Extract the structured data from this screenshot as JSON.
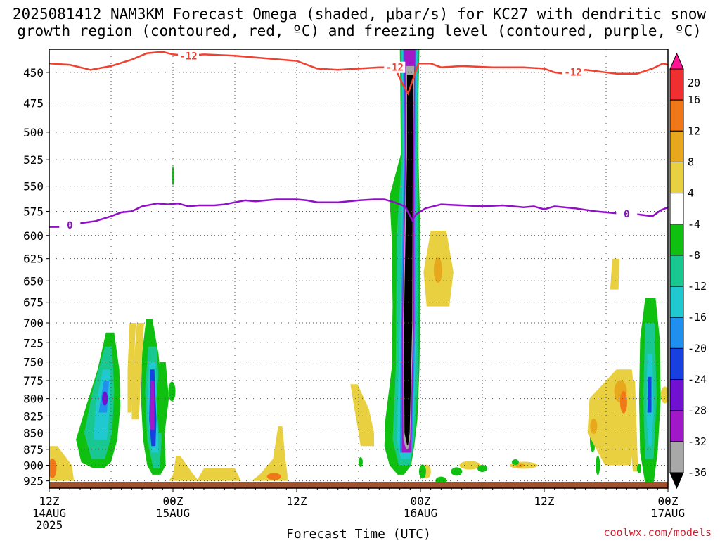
{
  "chart_data": {
    "type": "heatmap",
    "title_lines": [
      "2025081412 NAM3KM Forecast Omega (shaded, μbar/s) for KC27 with dendritic snow",
      "growth region (contoured, red, ºC) and freezing level (contoured, purple, ºC)"
    ],
    "xlabel": "Forecast Time (UTC)",
    "ylabel": "",
    "credit": "coolwx.com/models",
    "x_ticks": [
      {
        "hour": 0,
        "label": [
          "12Z",
          "14AUG",
          "2025"
        ]
      },
      {
        "hour": 12,
        "label": [
          "00Z",
          "15AUG"
        ]
      },
      {
        "hour": 24,
        "label": [
          "12Z"
        ]
      },
      {
        "hour": 36,
        "label": [
          "00Z",
          "16AUG"
        ]
      },
      {
        "hour": 48,
        "label": [
          "12Z"
        ]
      },
      {
        "hour": 60,
        "label": [
          "00Z",
          "17AUG"
        ]
      }
    ],
    "xlim": [
      0,
      60
    ],
    "y_ticks": [
      450,
      475,
      500,
      525,
      550,
      575,
      600,
      625,
      650,
      675,
      700,
      725,
      750,
      775,
      800,
      825,
      850,
      875,
      900,
      925
    ],
    "ylim": [
      432,
      937
    ],
    "y_scale": "log-pressure (inverted, hPa)",
    "grid": true,
    "colorbar": {
      "ticks": [
        20,
        16,
        12,
        8,
        4,
        -4,
        -8,
        -12,
        -16,
        -20,
        -24,
        -28,
        -32,
        -36
      ],
      "colors": [
        "#ff1493",
        "#f03030",
        "#f07818",
        "#e8a81e",
        "#e8d040",
        "#ffffff",
        "#10c010",
        "#18c890",
        "#20c8d0",
        "#2090f0",
        "#1840e0",
        "#7010d0",
        "#a018c8",
        "#a8a8a8",
        "#000000"
      ]
    },
    "contours": [
      {
        "label": "-12",
        "color": "#f04030",
        "points": [
          [
            0,
            443
          ],
          [
            2,
            444
          ],
          [
            4,
            448
          ],
          [
            6,
            445
          ],
          [
            8,
            440
          ],
          [
            9.5,
            435
          ],
          [
            11,
            434
          ],
          [
            12,
            436
          ],
          [
            13.5,
            437
          ],
          [
            15,
            436
          ],
          [
            18,
            437
          ],
          [
            21,
            439
          ],
          [
            24,
            441
          ],
          [
            26,
            447
          ],
          [
            28,
            448
          ],
          [
            30,
            447
          ],
          [
            32,
            446
          ],
          [
            33.5,
            446
          ],
          [
            34.3,
            460
          ],
          [
            34.8,
            467
          ],
          [
            35.3,
            455
          ],
          [
            35.8,
            443
          ],
          [
            37,
            443
          ],
          [
            38,
            446
          ],
          [
            40,
            445
          ],
          [
            43,
            446
          ],
          [
            46,
            446
          ],
          [
            48,
            447
          ],
          [
            49,
            450
          ],
          [
            50,
            451
          ],
          [
            52,
            448
          ],
          [
            53,
            449
          ],
          [
            55,
            451
          ],
          [
            57,
            451
          ],
          [
            58.5,
            447
          ],
          [
            59.5,
            443
          ],
          [
            60,
            444
          ]
        ],
        "label_positions": [
          13.5,
          33.5,
          50.8
        ]
      },
      {
        "label": "0",
        "color": "#9010c8",
        "points": [
          [
            0,
            591
          ],
          [
            1,
            591
          ],
          [
            2.5,
            588
          ],
          [
            4.5,
            585
          ],
          [
            6,
            580
          ],
          [
            7,
            576
          ],
          [
            8,
            575
          ],
          [
            9,
            570
          ],
          [
            10.5,
            567
          ],
          [
            11.5,
            568
          ],
          [
            12.5,
            567
          ],
          [
            13.5,
            570
          ],
          [
            14.5,
            569
          ],
          [
            16,
            569
          ],
          [
            17,
            568
          ],
          [
            18,
            566
          ],
          [
            19,
            564
          ],
          [
            20,
            565
          ],
          [
            21,
            564
          ],
          [
            22,
            563
          ],
          [
            24,
            563
          ],
          [
            25,
            564
          ],
          [
            26,
            566
          ],
          [
            28,
            566
          ],
          [
            30,
            564
          ],
          [
            31.5,
            563
          ],
          [
            32.5,
            563
          ],
          [
            33.5,
            566
          ],
          [
            34.5,
            570
          ],
          [
            35.2,
            584
          ],
          [
            35.6,
            578
          ],
          [
            36.5,
            572
          ],
          [
            38,
            568
          ],
          [
            40,
            569
          ],
          [
            42,
            570
          ],
          [
            44,
            569
          ],
          [
            46,
            571
          ],
          [
            47,
            570
          ],
          [
            48,
            573
          ],
          [
            49,
            570
          ],
          [
            51,
            572
          ],
          [
            53,
            575
          ],
          [
            55,
            577
          ],
          [
            57,
            578
          ],
          [
            58.5,
            580
          ],
          [
            59.3,
            574
          ],
          [
            60,
            571
          ]
        ],
        "label_positions": [
          2,
          56
        ]
      }
    ],
    "omega_features": [
      {
        "kind": "updraft-core",
        "hours": [
          33.8,
          36
        ],
        "pressure_top": 432,
        "pressure_bottom": 880,
        "peak": "< -36"
      },
      {
        "kind": "updraft-cell",
        "hours": [
          1.5,
          6.5
        ],
        "pressure_top": 712,
        "pressure_bottom": 905,
        "peak": -28
      },
      {
        "kind": "updraft-cell",
        "hours": [
          8.5,
          12.5
        ],
        "pressure_top": 695,
        "pressure_bottom": 915,
        "peak": -28
      },
      {
        "kind": "updraft-cell",
        "hours": [
          57,
          59.3
        ],
        "pressure_top": 670,
        "pressure_bottom": 930,
        "peak": -24
      },
      {
        "kind": "downdraft-cell",
        "hours": [
          36.5,
          38.5
        ],
        "pressure_top": 595,
        "pressure_bottom": 680,
        "peak": 8
      },
      {
        "kind": "downdraft-cell",
        "hours": [
          51,
          57
        ],
        "pressure_top": 760,
        "pressure_bottom": 915,
        "peak": 12
      },
      {
        "kind": "downdraft-cell",
        "hours": [
          0,
          2.5
        ],
        "pressure_top": 870,
        "pressure_bottom": 925,
        "peak": 16
      }
    ]
  }
}
